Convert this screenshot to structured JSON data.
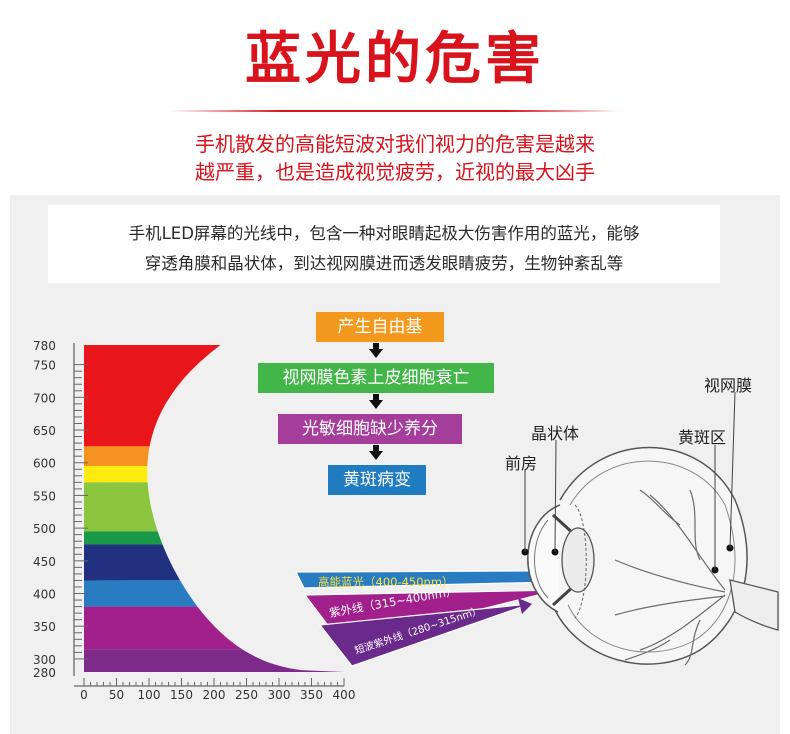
{
  "title": "蓝光的危害",
  "subtitle": {
    "line1": "手机散发的高能短波对我们视力的危害是越来",
    "line2": "越严重，也是造成视觉疲劳，近视的最大凶手"
  },
  "intro": {
    "line1": "手机LED屏幕的光线中，包含一种对眼睛起极大伤害作用的蓝光，能够",
    "line2": "穿透角膜和晶状体，到达视网膜进而透发眼睛疲劳，生物钟紊乱等"
  },
  "flow": [
    {
      "label": "产生自由基",
      "color": "#f39a1e"
    },
    {
      "label": "视网膜色素上皮细胞衰亡",
      "color": "#43b649"
    },
    {
      "label": "光敏细胞缺少养分",
      "color": "#a53d9b"
    },
    {
      "label": "黄斑病变",
      "color": "#1f7cc1"
    }
  ],
  "eye_labels": {
    "retina": "视网膜",
    "lens": "晶状体",
    "macula": "黄斑区",
    "anterior_chamber": "前房"
  },
  "chart_data": {
    "type": "bar",
    "y_ticks": [
      280,
      300,
      350,
      400,
      450,
      500,
      550,
      600,
      650,
      700,
      750,
      780
    ],
    "x_ticks": [
      0,
      50,
      100,
      150,
      200,
      250,
      300,
      350,
      400
    ],
    "xlim": [
      0,
      400
    ],
    "ylim": [
      280,
      780
    ],
    "bands": [
      {
        "from": 625,
        "to": 780,
        "color": "#e8161b"
      },
      {
        "from": 595,
        "to": 625,
        "color": "#f4931f"
      },
      {
        "from": 570,
        "to": 595,
        "color": "#fdeb10"
      },
      {
        "from": 495,
        "to": 570,
        "color": "#8cc63f"
      },
      {
        "from": 475,
        "to": 495,
        "color": "#1a9a48"
      },
      {
        "from": 420,
        "to": 475,
        "color": "#21307f"
      },
      {
        "from": 380,
        "to": 420,
        "color": "#2a7cc2"
      },
      {
        "from": 315,
        "to": 380,
        "color": "#a1208c"
      },
      {
        "from": 280,
        "to": 315,
        "color": "#7e2a8b"
      }
    ],
    "rays": [
      {
        "label": "高能蓝光（400-450nm）",
        "color": "#2a7cc2"
      },
      {
        "label": "紫外线（315~400nm）",
        "color": "#a1208c"
      },
      {
        "label": "短波紫外线（280~315nm）",
        "color": "#6a2a8c"
      }
    ]
  }
}
